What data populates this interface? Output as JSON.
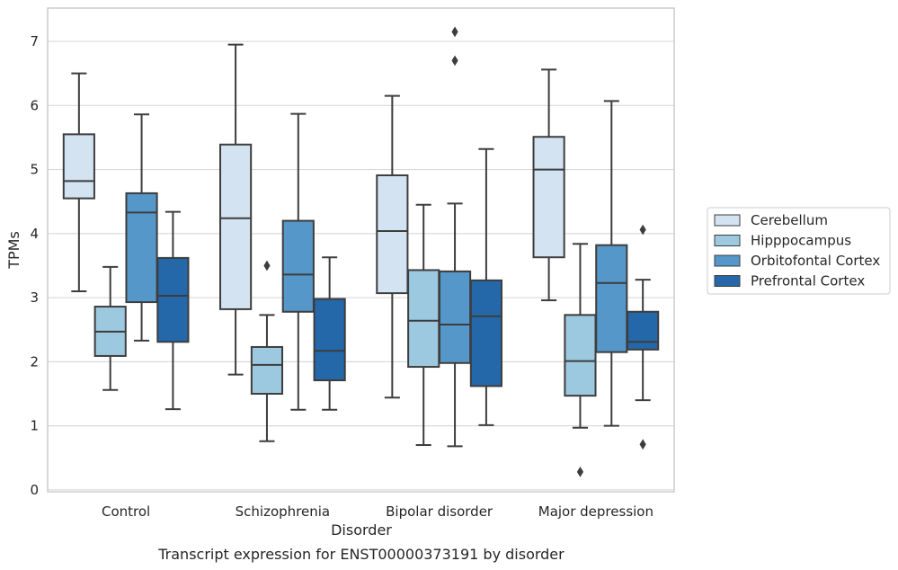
{
  "chart_data": {
    "type": "box",
    "caption": "Transcript expression for ENST00000373191 by disorder",
    "xlabel": "Disorder",
    "ylabel": "TPMs",
    "ylim": [
      -0.03,
      7.52
    ],
    "yticks": [
      0,
      1,
      2,
      3,
      4,
      5,
      6,
      7
    ],
    "grid": "horizontal",
    "legend_position": "right",
    "categories": [
      "Control",
      "Schizophrenia",
      "Bipolar disorder",
      "Major depression"
    ],
    "series": [
      {
        "name": "Cerebellum",
        "color": "#d3e3f2",
        "boxes": [
          {
            "min": 3.1,
            "q1": 4.55,
            "median": 4.82,
            "q3": 5.55,
            "max": 6.5,
            "outliers": []
          },
          {
            "min": 1.8,
            "q1": 2.82,
            "median": 4.24,
            "q3": 5.39,
            "max": 6.95,
            "outliers": []
          },
          {
            "min": 1.44,
            "q1": 3.07,
            "median": 4.04,
            "q3": 4.91,
            "max": 6.15,
            "outliers": []
          },
          {
            "min": 2.96,
            "q1": 3.63,
            "median": 5.0,
            "q3": 5.51,
            "max": 6.56,
            "outliers": []
          }
        ]
      },
      {
        "name": "Hipppocampus",
        "color": "#9dc9e0",
        "boxes": [
          {
            "min": 1.56,
            "q1": 2.09,
            "median": 2.47,
            "q3": 2.86,
            "max": 3.48,
            "outliers": []
          },
          {
            "min": 0.76,
            "q1": 1.5,
            "median": 1.95,
            "q3": 2.23,
            "max": 2.73,
            "outliers": [
              3.5
            ]
          },
          {
            "min": 0.7,
            "q1": 1.92,
            "median": 2.64,
            "q3": 3.43,
            "max": 4.45,
            "outliers": []
          },
          {
            "min": 0.97,
            "q1": 1.47,
            "median": 2.01,
            "q3": 2.73,
            "max": 3.84,
            "outliers": [
              0.28
            ]
          }
        ]
      },
      {
        "name": "Orbitofontal Cortex",
        "color": "#5597c9",
        "boxes": [
          {
            "min": 2.33,
            "q1": 2.93,
            "median": 4.33,
            "q3": 4.63,
            "max": 5.86,
            "outliers": []
          },
          {
            "min": 1.25,
            "q1": 2.78,
            "median": 3.36,
            "q3": 4.2,
            "max": 5.87,
            "outliers": []
          },
          {
            "min": 0.68,
            "q1": 1.98,
            "median": 2.58,
            "q3": 3.41,
            "max": 4.47,
            "outliers": [
              7.15,
              6.7
            ]
          },
          {
            "min": 1.0,
            "q1": 2.15,
            "median": 3.23,
            "q3": 3.82,
            "max": 6.07,
            "outliers": []
          }
        ]
      },
      {
        "name": "Prefrontal Cortex",
        "color": "#2468aa",
        "boxes": [
          {
            "min": 1.26,
            "q1": 2.31,
            "median": 3.03,
            "q3": 3.62,
            "max": 4.34,
            "outliers": []
          },
          {
            "min": 1.25,
            "q1": 1.71,
            "median": 2.17,
            "q3": 2.98,
            "max": 3.63,
            "outliers": []
          },
          {
            "min": 1.01,
            "q1": 1.62,
            "median": 2.71,
            "q3": 3.27,
            "max": 5.32,
            "outliers": []
          },
          {
            "min": 1.4,
            "q1": 2.19,
            "median": 2.31,
            "q3": 2.78,
            "max": 3.28,
            "outliers": [
              4.06,
              0.71
            ]
          }
        ]
      }
    ]
  }
}
